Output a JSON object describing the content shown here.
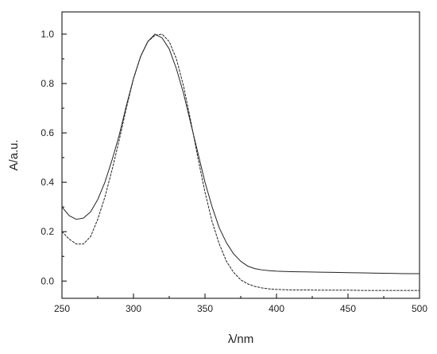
{
  "chart_data": {
    "type": "line",
    "title": "",
    "xlabel": "λ/nm",
    "ylabel": "A/a.u.",
    "xlim": [
      250,
      500
    ],
    "ylim": [
      -0.07,
      1.09
    ],
    "grid": false,
    "legend": "none",
    "x_ticks": [
      250,
      300,
      350,
      400,
      450,
      500
    ],
    "y_ticks": [
      0.0,
      0.2,
      0.4,
      0.6,
      0.8,
      1.0
    ],
    "x_tick_labels": [
      "250",
      "300",
      "350",
      "400",
      "450",
      "500"
    ],
    "y_tick_labels": [
      "0.0",
      "0.2",
      "0.4",
      "0.6",
      "0.8",
      "1.0"
    ],
    "series": [
      {
        "style": "solid",
        "color": "#222222",
        "x": [
          250,
          255,
          260,
          265,
          270,
          275,
          280,
          285,
          290,
          295,
          300,
          305,
          310,
          315,
          320,
          325,
          330,
          335,
          340,
          345,
          350,
          355,
          360,
          365,
          370,
          375,
          380,
          385,
          390,
          395,
          400,
          410,
          420,
          430,
          440,
          450,
          460,
          470,
          480,
          490,
          500
        ],
        "y": [
          0.3,
          0.265,
          0.25,
          0.255,
          0.28,
          0.33,
          0.4,
          0.49,
          0.59,
          0.71,
          0.82,
          0.91,
          0.97,
          1.0,
          0.985,
          0.94,
          0.86,
          0.76,
          0.64,
          0.52,
          0.4,
          0.3,
          0.215,
          0.155,
          0.11,
          0.08,
          0.06,
          0.05,
          0.045,
          0.042,
          0.04,
          0.038,
          0.037,
          0.036,
          0.035,
          0.034,
          0.033,
          0.032,
          0.031,
          0.03,
          0.03
        ]
      },
      {
        "style": "dashed",
        "color": "#222222",
        "x": [
          250,
          255,
          260,
          265,
          270,
          275,
          280,
          285,
          290,
          295,
          300,
          305,
          310,
          315,
          320,
          325,
          330,
          335,
          340,
          345,
          350,
          355,
          360,
          365,
          370,
          375,
          380,
          385,
          390,
          395,
          400,
          410,
          420,
          430,
          440,
          450,
          460,
          470,
          480,
          490,
          500
        ],
        "y": [
          0.2,
          0.17,
          0.15,
          0.15,
          0.18,
          0.25,
          0.34,
          0.45,
          0.57,
          0.7,
          0.82,
          0.91,
          0.97,
          0.995,
          1.0,
          0.97,
          0.9,
          0.79,
          0.65,
          0.5,
          0.36,
          0.24,
          0.15,
          0.08,
          0.035,
          0.005,
          -0.012,
          -0.022,
          -0.028,
          -0.032,
          -0.034,
          -0.036,
          -0.036,
          -0.037,
          -0.037,
          -0.037,
          -0.038,
          -0.038,
          -0.038,
          -0.038,
          -0.038
        ]
      }
    ]
  }
}
